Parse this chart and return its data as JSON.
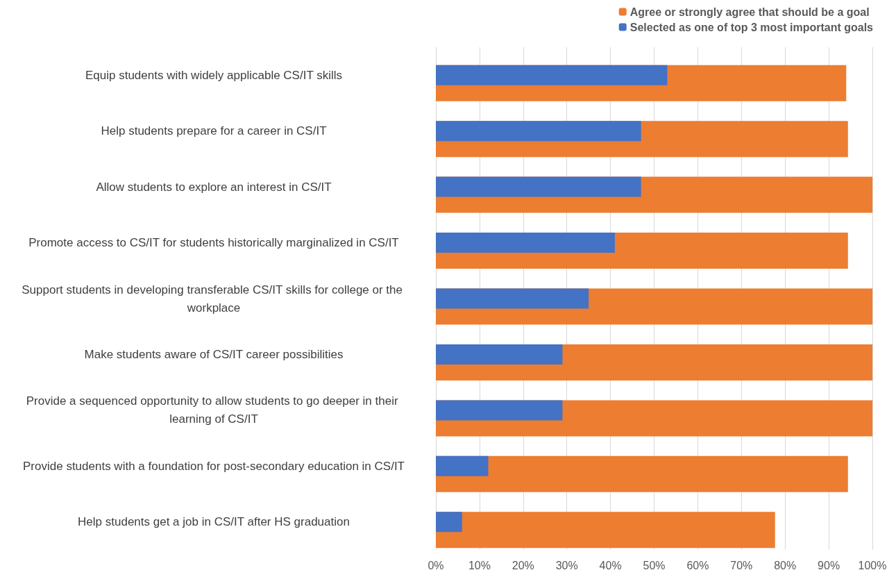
{
  "chart_data": {
    "type": "bar",
    "orientation": "horizontal",
    "categories": [
      "Equip students with widely applicable CS/IT skills",
      "Help students prepare for a career in CS/IT",
      "Allow students to explore an interest in CS/IT",
      "Promote access to CS/IT for students historically marginalized in CS/IT",
      "Support students in developing transferable CS/IT skills for college or the workplace",
      "Make students aware of CS/IT career possibilities",
      "Provide a sequenced opportunity to allow students to go deeper in their learning of CS/IT",
      "Provide students with a foundation for post-secondary education in CS/IT",
      "Help students get a job in CS/IT after HS graduation"
    ],
    "series": [
      {
        "name": "Agree or strongly agree that should be a goal",
        "color": "#ed7d31",
        "values": [
          94,
          94.4,
          100,
          94.4,
          100,
          100,
          100,
          94.4,
          77.7
        ]
      },
      {
        "name": "Selected as one of top 3 most important goals",
        "color": "#4472c4",
        "values": [
          53,
          47,
          47,
          41,
          35,
          29,
          29,
          12,
          6
        ]
      }
    ],
    "xlim": [
      0,
      100
    ],
    "xticks": [
      {
        "value": 0,
        "label": "0%"
      },
      {
        "value": 10,
        "label": "10%"
      },
      {
        "value": 20,
        "label": "20%"
      },
      {
        "value": 30,
        "label": "30%"
      },
      {
        "value": 40,
        "label": "40%"
      },
      {
        "value": 50,
        "label": "50%"
      },
      {
        "value": 60,
        "label": "60%"
      },
      {
        "value": 70,
        "label": "70%"
      },
      {
        "value": 80,
        "label": "80%"
      },
      {
        "value": 90,
        "label": "90%"
      },
      {
        "value": 100,
        "label": "100%"
      }
    ],
    "grid": "x",
    "legend": "top right"
  }
}
